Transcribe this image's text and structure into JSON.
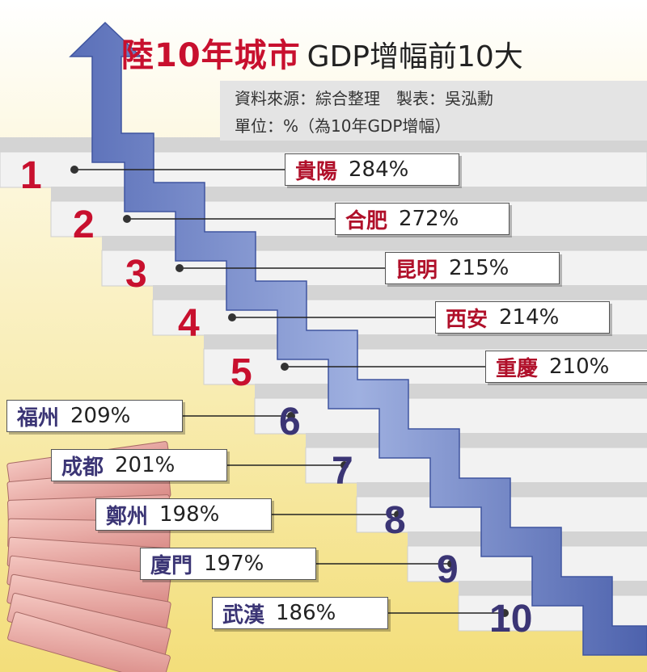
{
  "title": {
    "main": "陸10年城市",
    "sub": "GDP增幅前10大"
  },
  "source": {
    "line1": "資料來源：綜合整理　製表：吳泓勳",
    "line2": "單位：%（為10年GDP增幅）"
  },
  "chart_data": {
    "type": "bar",
    "title": "陸10年城市GDP增幅前10大",
    "unit": "%",
    "categories": [
      "貴陽",
      "合肥",
      "昆明",
      "西安",
      "重慶",
      "福州",
      "成都",
      "鄭州",
      "廈門",
      "武漢"
    ],
    "ranks": [
      "1",
      "2",
      "3",
      "4",
      "5",
      "6",
      "7",
      "8",
      "9",
      "10"
    ],
    "values": [
      284,
      272,
      215,
      214,
      210,
      209,
      201,
      198,
      197,
      186
    ],
    "value_labels": [
      "284%",
      "272%",
      "215%",
      "214%",
      "210%",
      "209%",
      "201%",
      "198%",
      "197%",
      "186%"
    ]
  },
  "colors": {
    "red": "#c8102e",
    "navy": "#3b3575",
    "arrow": "#6f86c6",
    "bg_yellow": "#f6e79a"
  }
}
